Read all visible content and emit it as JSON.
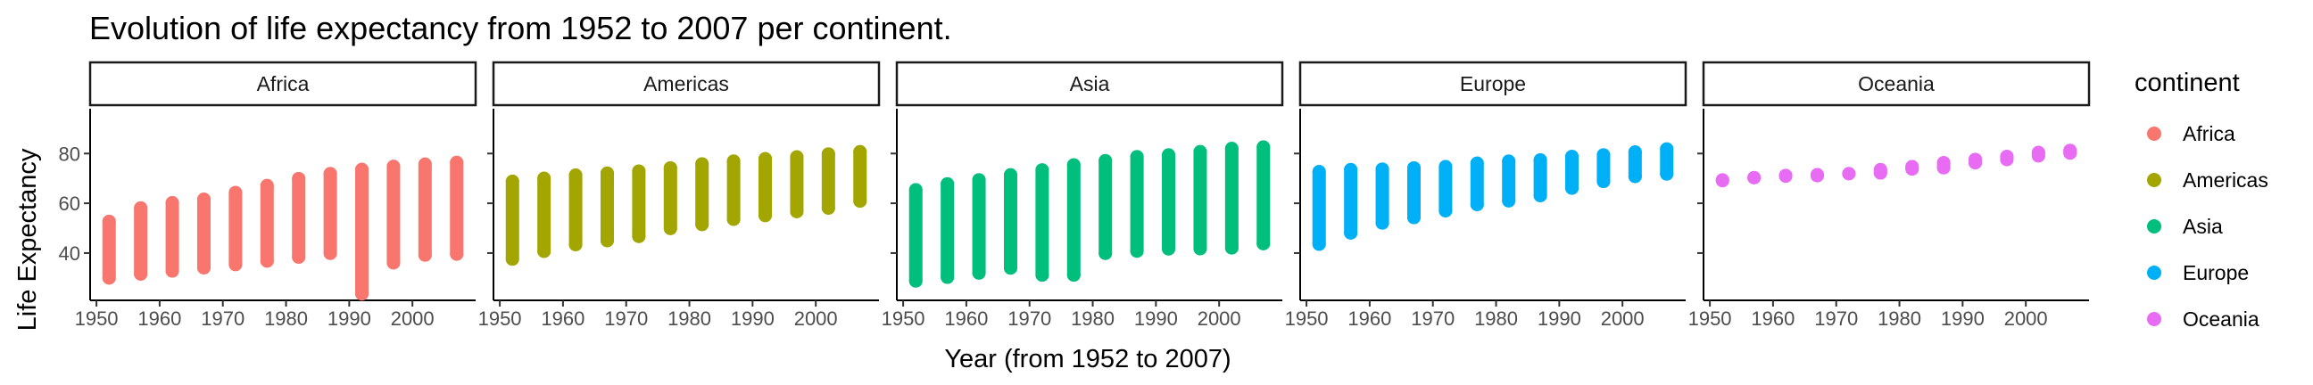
{
  "chart_data": {
    "type": "scatter",
    "title": "Evolution of life expectancy from 1952 to 2007 per continent.",
    "xlabel": "Year (from 1952 to 2007)",
    "ylabel": "Life Expectancy",
    "x_ticks": [
      1950,
      1960,
      1970,
      1980,
      1990,
      2000
    ],
    "y_ticks": [
      40,
      60,
      80
    ],
    "xlim": [
      1949,
      2010
    ],
    "ylim": [
      21,
      98
    ],
    "grid": false,
    "facet_by": "continent",
    "legend": {
      "title": "continent",
      "position": "right"
    },
    "x": [
      1952,
      1957,
      1962,
      1967,
      1972,
      1977,
      1982,
      1987,
      1992,
      1997,
      2002,
      2007
    ],
    "series": [
      {
        "name": "Africa",
        "color": "#F8766D",
        "ranges": [
          {
            "x": 1952,
            "min": 30.0,
            "max": 52.7
          },
          {
            "x": 1957,
            "min": 31.6,
            "max": 58.1
          },
          {
            "x": 1962,
            "min": 32.8,
            "max": 60.2
          },
          {
            "x": 1967,
            "min": 34.1,
            "max": 61.6
          },
          {
            "x": 1972,
            "min": 35.4,
            "max": 64.3
          },
          {
            "x": 1977,
            "min": 36.8,
            "max": 67.1
          },
          {
            "x": 1982,
            "min": 38.4,
            "max": 69.9
          },
          {
            "x": 1987,
            "min": 39.9,
            "max": 71.9
          },
          {
            "x": 1992,
            "min": 23.6,
            "max": 73.6
          },
          {
            "x": 1997,
            "min": 36.1,
            "max": 74.8
          },
          {
            "x": 2002,
            "min": 39.2,
            "max": 75.7
          },
          {
            "x": 2007,
            "min": 39.6,
            "max": 76.4
          }
        ]
      },
      {
        "name": "Americas",
        "color": "#A3A500",
        "ranges": [
          {
            "x": 1952,
            "min": 37.6,
            "max": 68.8
          },
          {
            "x": 1957,
            "min": 40.7,
            "max": 70.0
          },
          {
            "x": 1962,
            "min": 43.4,
            "max": 71.3
          },
          {
            "x": 1967,
            "min": 45.0,
            "max": 72.1
          },
          {
            "x": 1972,
            "min": 46.7,
            "max": 72.9
          },
          {
            "x": 1977,
            "min": 49.9,
            "max": 74.2
          },
          {
            "x": 1982,
            "min": 51.5,
            "max": 75.8
          },
          {
            "x": 1987,
            "min": 53.6,
            "max": 76.9
          },
          {
            "x": 1992,
            "min": 55.1,
            "max": 77.9
          },
          {
            "x": 1997,
            "min": 56.7,
            "max": 78.6
          },
          {
            "x": 2002,
            "min": 58.1,
            "max": 79.8
          },
          {
            "x": 2007,
            "min": 60.9,
            "max": 80.7
          }
        ]
      },
      {
        "name": "Asia",
        "color": "#00BF7D",
        "ranges": [
          {
            "x": 1952,
            "min": 28.8,
            "max": 65.4
          },
          {
            "x": 1957,
            "min": 30.3,
            "max": 67.8
          },
          {
            "x": 1962,
            "min": 32.0,
            "max": 69.4
          },
          {
            "x": 1967,
            "min": 34.0,
            "max": 71.4
          },
          {
            "x": 1972,
            "min": 31.2,
            "max": 73.4
          },
          {
            "x": 1977,
            "min": 31.2,
            "max": 75.4
          },
          {
            "x": 1982,
            "min": 39.9,
            "max": 77.1
          },
          {
            "x": 1987,
            "min": 40.8,
            "max": 78.7
          },
          {
            "x": 1992,
            "min": 41.7,
            "max": 79.4
          },
          {
            "x": 1997,
            "min": 41.8,
            "max": 80.7
          },
          {
            "x": 2002,
            "min": 42.1,
            "max": 82.0
          },
          {
            "x": 2007,
            "min": 43.8,
            "max": 82.6
          }
        ]
      },
      {
        "name": "Europe",
        "color": "#00B0F6",
        "ranges": [
          {
            "x": 1952,
            "min": 43.6,
            "max": 72.7
          },
          {
            "x": 1957,
            "min": 48.1,
            "max": 73.5
          },
          {
            "x": 1962,
            "min": 52.1,
            "max": 73.7
          },
          {
            "x": 1967,
            "min": 54.3,
            "max": 74.2
          },
          {
            "x": 1972,
            "min": 57.0,
            "max": 74.7
          },
          {
            "x": 1977,
            "min": 59.5,
            "max": 76.1
          },
          {
            "x": 1982,
            "min": 61.0,
            "max": 76.9
          },
          {
            "x": 1987,
            "min": 63.1,
            "max": 77.4
          },
          {
            "x": 1992,
            "min": 66.1,
            "max": 78.8
          },
          {
            "x": 1997,
            "min": 68.8,
            "max": 79.4
          },
          {
            "x": 2002,
            "min": 70.8,
            "max": 80.6
          },
          {
            "x": 2007,
            "min": 71.8,
            "max": 81.8
          }
        ]
      },
      {
        "name": "Oceania",
        "color": "#E76BF3",
        "ranges": [
          {
            "x": 1952,
            "min": 69.1,
            "max": 69.4
          },
          {
            "x": 1957,
            "min": 70.3,
            "max": 70.3
          },
          {
            "x": 1962,
            "min": 70.9,
            "max": 71.2
          },
          {
            "x": 1967,
            "min": 71.1,
            "max": 71.5
          },
          {
            "x": 1972,
            "min": 71.9,
            "max": 71.9
          },
          {
            "x": 1977,
            "min": 72.2,
            "max": 73.5
          },
          {
            "x": 1982,
            "min": 73.8,
            "max": 74.7
          },
          {
            "x": 1987,
            "min": 74.3,
            "max": 76.3
          },
          {
            "x": 1992,
            "min": 76.3,
            "max": 77.6
          },
          {
            "x": 1997,
            "min": 77.6,
            "max": 78.8
          },
          {
            "x": 2002,
            "min": 79.1,
            "max": 80.4
          },
          {
            "x": 2007,
            "min": 80.2,
            "max": 81.2
          }
        ]
      }
    ]
  }
}
